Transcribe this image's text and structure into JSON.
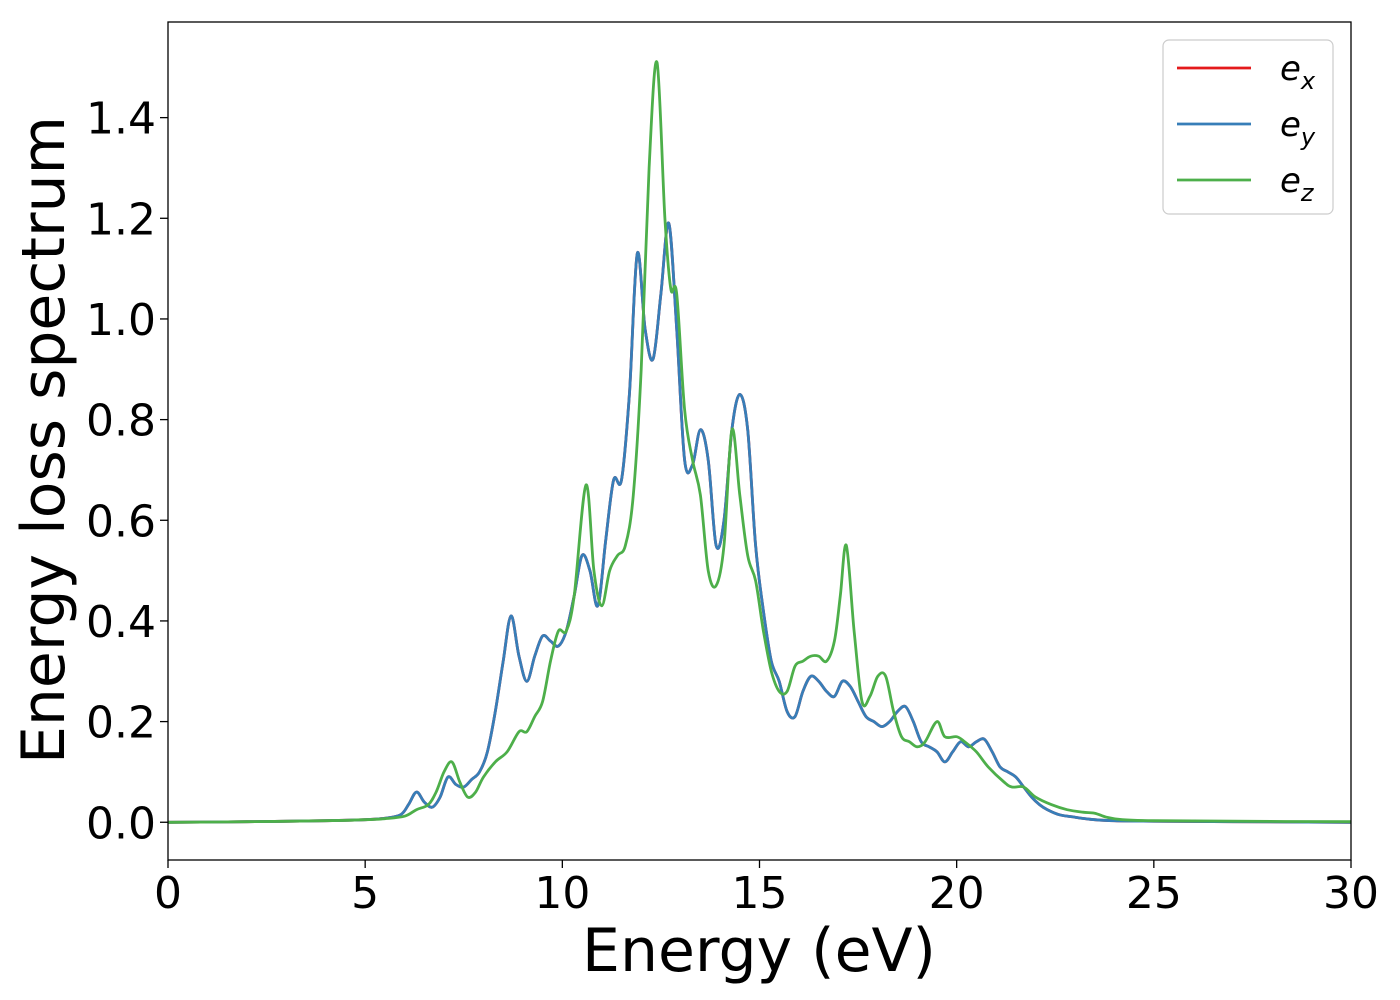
{
  "chart_data": {
    "type": "line",
    "title": "",
    "xlabel": "Energy (eV)",
    "ylabel": "Energy loss spectrum",
    "xlim": [
      0,
      30
    ],
    "ylim": [
      -0.075,
      1.59
    ],
    "xticks": [
      0,
      5,
      10,
      15,
      20,
      25,
      30
    ],
    "xtick_labels": [
      "0",
      "5",
      "10",
      "15",
      "20",
      "25",
      "30"
    ],
    "yticks": [
      0.0,
      0.2,
      0.4,
      0.6,
      0.8,
      1.0,
      1.2,
      1.4
    ],
    "ytick_labels": [
      "0.0",
      "0.2",
      "0.4",
      "0.6",
      "0.8",
      "1.0",
      "1.2",
      "1.4"
    ],
    "grid": false,
    "legend_position": "top-right",
    "series": [
      {
        "name": "e_x",
        "legend_base": "e",
        "legend_sub": "x",
        "color": "#e41a1c",
        "x": [
          0,
          2,
          4,
          5,
          5.5,
          5.9,
          6.1,
          6.3,
          6.5,
          6.7,
          6.9,
          7.1,
          7.3,
          7.5,
          7.7,
          7.9,
          8.1,
          8.3,
          8.5,
          8.7,
          8.9,
          9.1,
          9.3,
          9.5,
          9.7,
          9.9,
          10.1,
          10.3,
          10.5,
          10.7,
          10.9,
          11.1,
          11.3,
          11.5,
          11.7,
          11.9,
          12.1,
          12.3,
          12.5,
          12.7,
          12.9,
          13.1,
          13.3,
          13.5,
          13.7,
          13.9,
          14.1,
          14.3,
          14.5,
          14.7,
          14.9,
          15.1,
          15.3,
          15.5,
          15.7,
          15.9,
          16.1,
          16.3,
          16.5,
          16.7,
          16.9,
          17.1,
          17.3,
          17.5,
          17.7,
          17.9,
          18.1,
          18.3,
          18.5,
          18.7,
          18.9,
          19.1,
          19.3,
          19.5,
          19.7,
          19.9,
          20.1,
          20.3,
          20.5,
          20.7,
          20.9,
          21.1,
          21.3,
          21.5,
          21.7,
          21.9,
          22.1,
          22.3,
          22.6,
          23,
          23.5,
          24,
          25,
          27,
          30
        ],
        "y": [
          0.0,
          0.001,
          0.003,
          0.005,
          0.008,
          0.015,
          0.035,
          0.06,
          0.04,
          0.03,
          0.05,
          0.09,
          0.075,
          0.07,
          0.085,
          0.1,
          0.14,
          0.22,
          0.32,
          0.41,
          0.33,
          0.28,
          0.33,
          0.37,
          0.36,
          0.35,
          0.38,
          0.45,
          0.53,
          0.5,
          0.43,
          0.56,
          0.68,
          0.68,
          0.85,
          1.13,
          0.98,
          0.92,
          1.05,
          1.19,
          0.98,
          0.72,
          0.71,
          0.78,
          0.72,
          0.55,
          0.6,
          0.78,
          0.85,
          0.78,
          0.55,
          0.42,
          0.32,
          0.28,
          0.22,
          0.21,
          0.26,
          0.29,
          0.28,
          0.26,
          0.25,
          0.28,
          0.27,
          0.24,
          0.21,
          0.2,
          0.19,
          0.2,
          0.22,
          0.23,
          0.2,
          0.16,
          0.15,
          0.14,
          0.12,
          0.14,
          0.16,
          0.15,
          0.16,
          0.165,
          0.14,
          0.11,
          0.1,
          0.09,
          0.07,
          0.05,
          0.035,
          0.025,
          0.015,
          0.01,
          0.005,
          0.003,
          0.002,
          0.001,
          0.0
        ]
      },
      {
        "name": "e_y",
        "legend_base": "e",
        "legend_sub": "y",
        "color": "#377eb8",
        "x": [
          0,
          2,
          4,
          5,
          5.5,
          5.9,
          6.1,
          6.3,
          6.5,
          6.7,
          6.9,
          7.1,
          7.3,
          7.5,
          7.7,
          7.9,
          8.1,
          8.3,
          8.5,
          8.7,
          8.9,
          9.1,
          9.3,
          9.5,
          9.7,
          9.9,
          10.1,
          10.3,
          10.5,
          10.7,
          10.9,
          11.1,
          11.3,
          11.5,
          11.7,
          11.9,
          12.1,
          12.3,
          12.5,
          12.7,
          12.9,
          13.1,
          13.3,
          13.5,
          13.7,
          13.9,
          14.1,
          14.3,
          14.5,
          14.7,
          14.9,
          15.1,
          15.3,
          15.5,
          15.7,
          15.9,
          16.1,
          16.3,
          16.5,
          16.7,
          16.9,
          17.1,
          17.3,
          17.5,
          17.7,
          17.9,
          18.1,
          18.3,
          18.5,
          18.7,
          18.9,
          19.1,
          19.3,
          19.5,
          19.7,
          19.9,
          20.1,
          20.3,
          20.5,
          20.7,
          20.9,
          21.1,
          21.3,
          21.5,
          21.7,
          21.9,
          22.1,
          22.3,
          22.6,
          23,
          23.5,
          24,
          25,
          27,
          30
        ],
        "y": [
          0.0,
          0.001,
          0.003,
          0.005,
          0.008,
          0.015,
          0.035,
          0.06,
          0.04,
          0.03,
          0.05,
          0.09,
          0.075,
          0.07,
          0.085,
          0.1,
          0.14,
          0.22,
          0.32,
          0.41,
          0.33,
          0.28,
          0.33,
          0.37,
          0.36,
          0.35,
          0.38,
          0.45,
          0.53,
          0.5,
          0.43,
          0.56,
          0.68,
          0.68,
          0.85,
          1.13,
          0.98,
          0.92,
          1.05,
          1.19,
          0.98,
          0.72,
          0.71,
          0.78,
          0.72,
          0.55,
          0.6,
          0.78,
          0.85,
          0.78,
          0.55,
          0.42,
          0.32,
          0.28,
          0.22,
          0.21,
          0.26,
          0.29,
          0.28,
          0.26,
          0.25,
          0.28,
          0.27,
          0.24,
          0.21,
          0.2,
          0.19,
          0.2,
          0.22,
          0.23,
          0.2,
          0.16,
          0.15,
          0.14,
          0.12,
          0.14,
          0.16,
          0.15,
          0.16,
          0.165,
          0.14,
          0.11,
          0.1,
          0.09,
          0.07,
          0.05,
          0.035,
          0.025,
          0.015,
          0.01,
          0.005,
          0.003,
          0.002,
          0.001,
          0.0
        ]
      },
      {
        "name": "e_z",
        "legend_base": "e",
        "legend_sub": "z",
        "color": "#4daf4a",
        "x": [
          0,
          2,
          4,
          5,
          5.5,
          6,
          6.3,
          6.6,
          6.8,
          7,
          7.2,
          7.4,
          7.6,
          7.8,
          8,
          8.3,
          8.6,
          8.9,
          9.1,
          9.3,
          9.5,
          9.7,
          9.9,
          10.1,
          10.3,
          10.6,
          10.8,
          11,
          11.2,
          11.4,
          11.6,
          11.8,
          12,
          12.2,
          12.4,
          12.6,
          12.75,
          12.9,
          13.1,
          13.3,
          13.5,
          13.7,
          13.9,
          14.1,
          14.3,
          14.5,
          14.7,
          14.9,
          15.1,
          15.3,
          15.5,
          15.7,
          15.9,
          16.1,
          16.3,
          16.5,
          16.7,
          16.9,
          17.05,
          17.2,
          17.4,
          17.6,
          17.8,
          18,
          18.2,
          18.4,
          18.6,
          18.8,
          19,
          19.2,
          19.5,
          19.7,
          20,
          20.2,
          20.5,
          20.8,
          21.2,
          21.4,
          21.7,
          22,
          22.4,
          22.8,
          23.2,
          23.5,
          23.8,
          24.2,
          25,
          27,
          30
        ],
        "y": [
          0.0,
          0.001,
          0.003,
          0.005,
          0.007,
          0.012,
          0.025,
          0.035,
          0.06,
          0.1,
          0.12,
          0.08,
          0.05,
          0.06,
          0.09,
          0.12,
          0.14,
          0.18,
          0.18,
          0.21,
          0.24,
          0.32,
          0.38,
          0.38,
          0.45,
          0.67,
          0.5,
          0.43,
          0.5,
          0.53,
          0.55,
          0.65,
          0.9,
          1.3,
          1.51,
          1.2,
          1.06,
          1.05,
          0.82,
          0.72,
          0.65,
          0.5,
          0.47,
          0.55,
          0.78,
          0.65,
          0.53,
          0.48,
          0.38,
          0.3,
          0.26,
          0.26,
          0.31,
          0.32,
          0.33,
          0.33,
          0.32,
          0.36,
          0.45,
          0.55,
          0.38,
          0.24,
          0.25,
          0.29,
          0.29,
          0.22,
          0.17,
          0.16,
          0.15,
          0.16,
          0.2,
          0.17,
          0.17,
          0.16,
          0.14,
          0.11,
          0.08,
          0.07,
          0.07,
          0.05,
          0.035,
          0.025,
          0.02,
          0.018,
          0.01,
          0.005,
          0.003,
          0.002,
          0.001
        ]
      }
    ]
  }
}
